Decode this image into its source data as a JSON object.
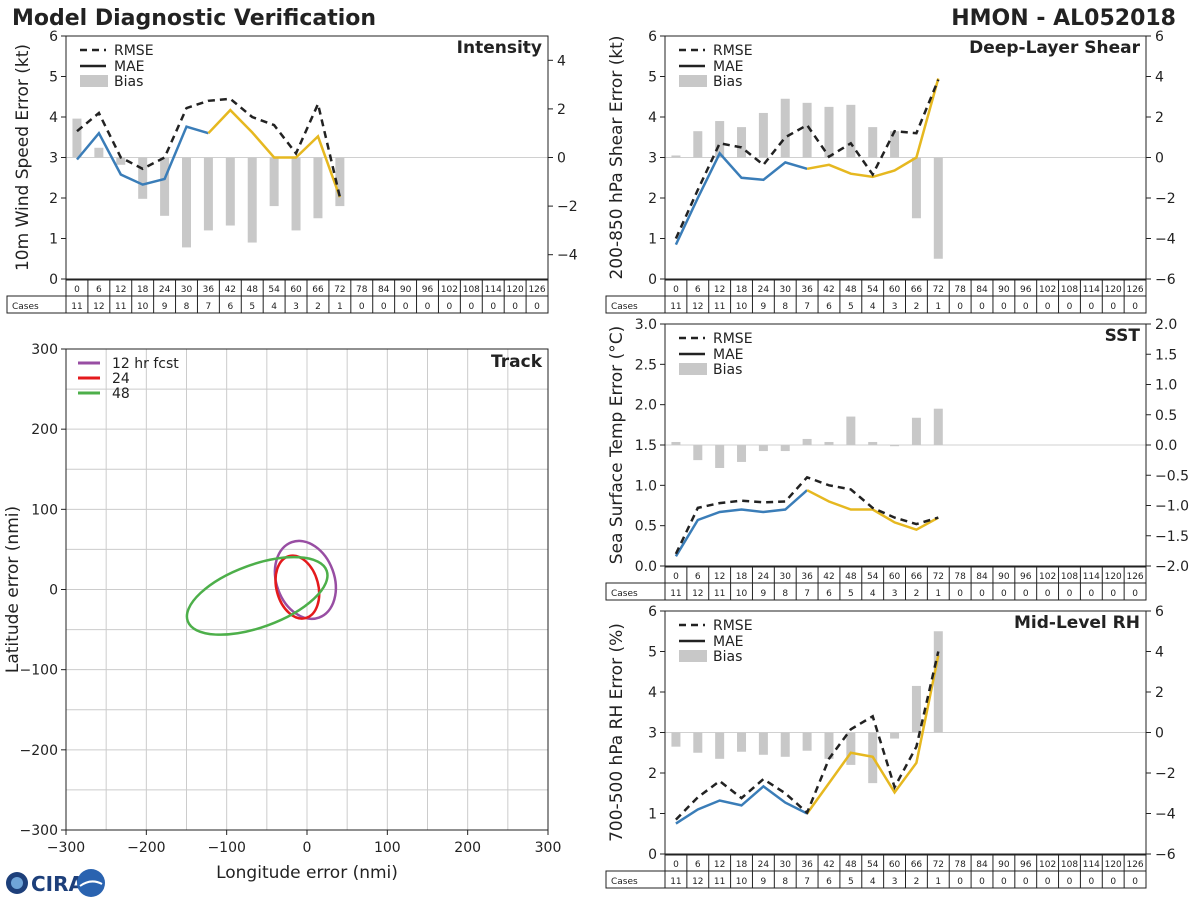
{
  "header": {
    "left_title": "Model Diagnostic Verification",
    "right_title": "HMON - AL052018"
  },
  "logo_text": "CIRA",
  "leadtimes": [
    "0",
    "6",
    "12",
    "18",
    "24",
    "30",
    "36",
    "42",
    "48",
    "54",
    "60",
    "66",
    "72",
    "78",
    "84",
    "90",
    "96",
    "102",
    "108",
    "114",
    "120",
    "126"
  ],
  "cases_label": "Cases",
  "cases": [
    "11",
    "12",
    "11",
    "10",
    "9",
    "8",
    "7",
    "6",
    "5",
    "4",
    "3",
    "2",
    "1",
    "0",
    "0",
    "0",
    "0",
    "0",
    "0",
    "0",
    "0",
    "0"
  ],
  "legend": {
    "rmse": "RMSE",
    "mae": "MAE",
    "bias": "Bias"
  },
  "colors": {
    "rmse": "#222222",
    "mae_early": "#3a7db8",
    "mae_late": "#e6b820",
    "bias": "#c8c8c8"
  },
  "chart_data": [
    {
      "id": "intensity",
      "type": "line",
      "title": "Intensity",
      "ylabel": "10m Wind Speed Error (kt)",
      "ylim": [
        0,
        6
      ],
      "yticks": [
        "0",
        "1",
        "2",
        "3",
        "4",
        "5",
        "6"
      ],
      "bias_ylim": [
        -5,
        5
      ],
      "bias_ticks": [
        "4",
        "2",
        "0",
        "−2",
        "−4"
      ],
      "rmse": [
        3.65,
        4.1,
        3.0,
        2.72,
        3.0,
        4.22,
        4.4,
        4.45,
        4.0,
        3.8,
        3.1,
        4.32,
        2.02
      ],
      "mae": [
        2.95,
        3.6,
        2.58,
        2.33,
        2.47,
        3.76,
        3.6,
        4.17,
        3.62,
        3.0,
        3.0,
        3.52,
        2.02
      ],
      "mae_switch_index": 6,
      "bias": [
        1.6,
        0.4,
        -0.3,
        -1.7,
        -2.4,
        -3.7,
        -3.0,
        -2.8,
        -3.5,
        -2.0,
        -3.0,
        -2.5,
        -2.0
      ]
    },
    {
      "id": "shear",
      "type": "line",
      "title": "Deep-Layer Shear",
      "ylabel": "200-850 hPa Shear Error (kt)",
      "ylim": [
        0,
        6
      ],
      "yticks": [
        "0",
        "1",
        "2",
        "3",
        "4",
        "5",
        "6"
      ],
      "bias_ylim": [
        -6,
        6
      ],
      "bias_ticks": [
        "6",
        "4",
        "2",
        "0",
        "−2",
        "−4",
        "−6"
      ],
      "rmse": [
        1.0,
        2.2,
        3.35,
        3.25,
        2.82,
        3.5,
        3.8,
        3.02,
        3.35,
        2.58,
        3.65,
        3.6,
        4.92
      ],
      "mae": [
        0.85,
        2.0,
        3.1,
        2.5,
        2.45,
        2.88,
        2.72,
        2.82,
        2.6,
        2.52,
        2.68,
        3.0,
        4.95
      ],
      "mae_switch_index": 6,
      "bias": [
        0.1,
        1.3,
        1.8,
        1.5,
        2.2,
        2.9,
        2.7,
        2.5,
        2.6,
        1.5,
        1.3,
        -3.0,
        -5.0
      ]
    },
    {
      "id": "sst",
      "type": "line",
      "title": "SST",
      "ylabel": "Sea Surface Temp Error (°C)",
      "ylim": [
        0,
        3
      ],
      "yticks": [
        "0.0",
        "0.5",
        "1.0",
        "1.5",
        "2.0",
        "2.5",
        "3.0"
      ],
      "bias_ylim": [
        -2,
        2
      ],
      "bias_ticks": [
        "2.0",
        "1.5",
        "1.0",
        "0.5",
        "0.0",
        "−0.5",
        "−1.0",
        "−1.5",
        "−2.0"
      ],
      "rmse": [
        0.15,
        0.72,
        0.78,
        0.81,
        0.79,
        0.8,
        1.1,
        1.0,
        0.95,
        0.72,
        0.6,
        0.52,
        0.6
      ],
      "mae": [
        0.12,
        0.57,
        0.67,
        0.7,
        0.67,
        0.7,
        0.94,
        0.8,
        0.7,
        0.7,
        0.54,
        0.45,
        0.6
      ],
      "mae_switch_index": 6,
      "bias": [
        0.05,
        -0.25,
        -0.38,
        -0.28,
        -0.1,
        -0.1,
        0.1,
        0.05,
        0.47,
        0.05,
        -0.02,
        0.45,
        0.6
      ]
    },
    {
      "id": "rh",
      "type": "line",
      "title": "Mid-Level RH",
      "ylabel": "700-500 hPa RH Error (%)",
      "ylim": [
        0,
        6
      ],
      "yticks": [
        "0",
        "1",
        "2",
        "3",
        "4",
        "5",
        "6"
      ],
      "bias_ylim": [
        -6,
        6
      ],
      "bias_ticks": [
        "6",
        "4",
        "2",
        "0",
        "−2",
        "−4",
        "−6"
      ],
      "rmse": [
        0.85,
        1.4,
        1.8,
        1.38,
        1.85,
        1.5,
        1.02,
        2.35,
        3.08,
        3.4,
        1.65,
        2.65,
        5.0
      ],
      "mae": [
        0.75,
        1.1,
        1.32,
        1.2,
        1.67,
        1.27,
        1.0,
        1.75,
        2.5,
        2.4,
        1.52,
        2.25,
        4.9
      ],
      "mae_switch_index": 6,
      "bias": [
        -0.7,
        -1.0,
        -1.3,
        -0.95,
        -1.1,
        -1.2,
        -0.9,
        -1.3,
        -1.6,
        -2.5,
        -0.3,
        2.3,
        5.0
      ]
    },
    {
      "id": "track",
      "type": "scatter",
      "title": "Track",
      "xlabel": "Longitude error (nmi)",
      "ylabel": "Latitude error (nmi)",
      "xlim": [
        -300,
        300
      ],
      "ylim": [
        -300,
        300
      ],
      "xticks": [
        "−300",
        "−200",
        "−100",
        "0",
        "100",
        "200",
        "300"
      ],
      "yticks": [
        "300",
        "200",
        "100",
        "0",
        "−100",
        "−200",
        "−300"
      ],
      "ellipses": [
        {
          "name": "12 hr fcst",
          "color": "#984ea3",
          "cx": -2,
          "cy": 12,
          "rx": 36,
          "ry": 50,
          "angle": -20
        },
        {
          "name": "24",
          "color": "#e41a1c",
          "cx": -12,
          "cy": 3,
          "rx": 26,
          "ry": 40,
          "angle": -15
        },
        {
          "name": "48",
          "color": "#4daf4a",
          "cx": -62,
          "cy": -8,
          "rx": 92,
          "ry": 39,
          "angle": -20
        }
      ]
    }
  ]
}
